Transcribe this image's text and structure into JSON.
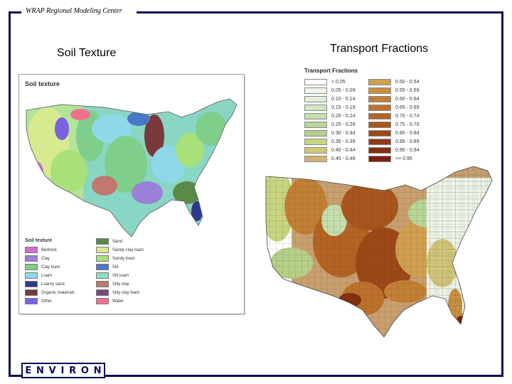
{
  "header": {
    "text": "WRAP Regional Modeling Center"
  },
  "titles": {
    "left": "Soil Texture",
    "right": "Transport Fractions"
  },
  "soil_map": {
    "heading": "Soil texture",
    "legend_heading": "Soil texture",
    "legend": [
      {
        "label": "Bedrock",
        "color": "#d86ad0"
      },
      {
        "label": "Clay",
        "color": "#9a80d8"
      },
      {
        "label": "Clay loam",
        "color": "#7fcf8a"
      },
      {
        "label": "Loam",
        "color": "#8fd8ea"
      },
      {
        "label": "Loamy sand",
        "color": "#2d3a8c"
      },
      {
        "label": "Organic materials",
        "color": "#7a3a3a"
      },
      {
        "label": "Other",
        "color": "#7a62e0"
      },
      {
        "label": "Sand",
        "color": "#5a8a48"
      },
      {
        "label": "Sandy clay loam",
        "color": "#d8ea90"
      },
      {
        "label": "Sandy loam",
        "color": "#a8e07a"
      },
      {
        "label": "Silt",
        "color": "#4a78c8"
      },
      {
        "label": "Silt loam",
        "color": "#8ce0c8"
      },
      {
        "label": "Silty clay",
        "color": "#c07870"
      },
      {
        "label": "Silty clay loam",
        "color": "#7a4a7a"
      },
      {
        "label": "Water",
        "color": "#f07090"
      }
    ]
  },
  "transport_map": {
    "legend_heading": "Transport Fractions",
    "legend": [
      {
        "label": "< 0.05",
        "color": "#ffffff"
      },
      {
        "label": "0.05 - 0.09",
        "color": "#eef6ea"
      },
      {
        "label": "0.10 - 0.14",
        "color": "#e0eed6"
      },
      {
        "label": "0.15 - 0.19",
        "color": "#d2e6c2"
      },
      {
        "label": "0.20 - 0.24",
        "color": "#c4deae"
      },
      {
        "label": "0.25 - 0.29",
        "color": "#b6d69a"
      },
      {
        "label": "0.30 - 0.34",
        "color": "#b4d088"
      },
      {
        "label": "0.35 - 0.39",
        "color": "#c6d680"
      },
      {
        "label": "0.40 - 0.44",
        "color": "#d2c878"
      },
      {
        "label": "0.45 - 0.49",
        "color": "#d2b070"
      },
      {
        "label": "0.50 - 0.54",
        "color": "#cfa050"
      },
      {
        "label": "0.55 - 0.59",
        "color": "#c89040"
      },
      {
        "label": "0.60 - 0.64",
        "color": "#c28036"
      },
      {
        "label": "0.65 - 0.69",
        "color": "#bc722c"
      },
      {
        "label": "0.70 - 0.74",
        "color": "#b46424"
      },
      {
        "label": "0.75 - 0.79",
        "color": "#a8561e"
      },
      {
        "label": "0.80 - 0.84",
        "color": "#9c4818"
      },
      {
        "label": "0.85 - 0.89",
        "color": "#903a14"
      },
      {
        "label": "0.90 - 0.94",
        "color": "#842e10"
      },
      {
        "label": ">= 0.95",
        "color": "#7a200c"
      }
    ]
  },
  "logo": {
    "letters": [
      "E",
      "N",
      "V",
      "I",
      "R",
      "O",
      "N"
    ]
  },
  "colors": {
    "frame": "#0a0a5c"
  }
}
